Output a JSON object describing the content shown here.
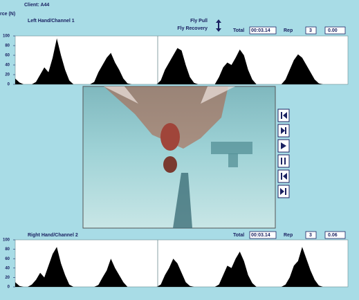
{
  "header": {
    "client": "Client: A44",
    "phase_a": "Fly Pull",
    "phase_b": "Fly Recovery"
  },
  "chart_data": [
    {
      "type": "area",
      "y_label": "rce (N)",
      "title": "Left Hand/Channel 1",
      "color": "#000000",
      "total_label": "Total",
      "total": "00:03.14",
      "rep_label": "Rep",
      "rep": "3",
      "field": "0.00",
      "ylim": [
        0,
        100
      ],
      "yticks": [
        0,
        20,
        40,
        60,
        80,
        100
      ],
      "values": [
        12,
        4,
        0,
        0,
        0,
        5,
        20,
        35,
        25,
        55,
        95,
        60,
        30,
        8,
        0,
        0,
        0,
        0,
        0,
        5,
        25,
        40,
        55,
        65,
        45,
        30,
        12,
        2,
        0,
        0,
        0,
        0,
        0,
        0,
        0,
        8,
        30,
        45,
        60,
        75,
        70,
        40,
        15,
        3,
        0,
        0,
        0,
        0,
        0,
        15,
        35,
        45,
        40,
        55,
        72,
        60,
        30,
        10,
        0,
        0,
        0,
        0,
        0,
        0,
        0,
        10,
        30,
        50,
        62,
        55,
        40,
        25,
        10,
        2,
        0,
        0,
        0,
        0,
        0,
        0,
        0
      ]
    },
    {
      "type": "area",
      "title": "Right Hand/Channel 2",
      "color": "#000000",
      "total_label": "Total",
      "total": "00:03.14",
      "rep_label": "Rep",
      "rep": "3",
      "field": "0.06",
      "ylim": [
        0,
        100
      ],
      "yticks": [
        0,
        20,
        40,
        60,
        80,
        100
      ],
      "values": [
        10,
        2,
        0,
        0,
        5,
        15,
        30,
        20,
        45,
        70,
        85,
        50,
        25,
        5,
        0,
        0,
        0,
        0,
        0,
        0,
        4,
        20,
        35,
        60,
        40,
        25,
        10,
        0,
        0,
        0,
        0,
        0,
        0,
        0,
        0,
        5,
        25,
        40,
        60,
        50,
        30,
        10,
        2,
        0,
        0,
        0,
        0,
        0,
        0,
        5,
        25,
        45,
        40,
        60,
        75,
        55,
        25,
        8,
        0,
        0,
        0,
        0,
        0,
        0,
        0,
        5,
        20,
        45,
        55,
        85,
        60,
        35,
        15,
        3,
        0,
        0,
        0,
        0,
        0,
        0,
        0
      ]
    }
  ]
}
